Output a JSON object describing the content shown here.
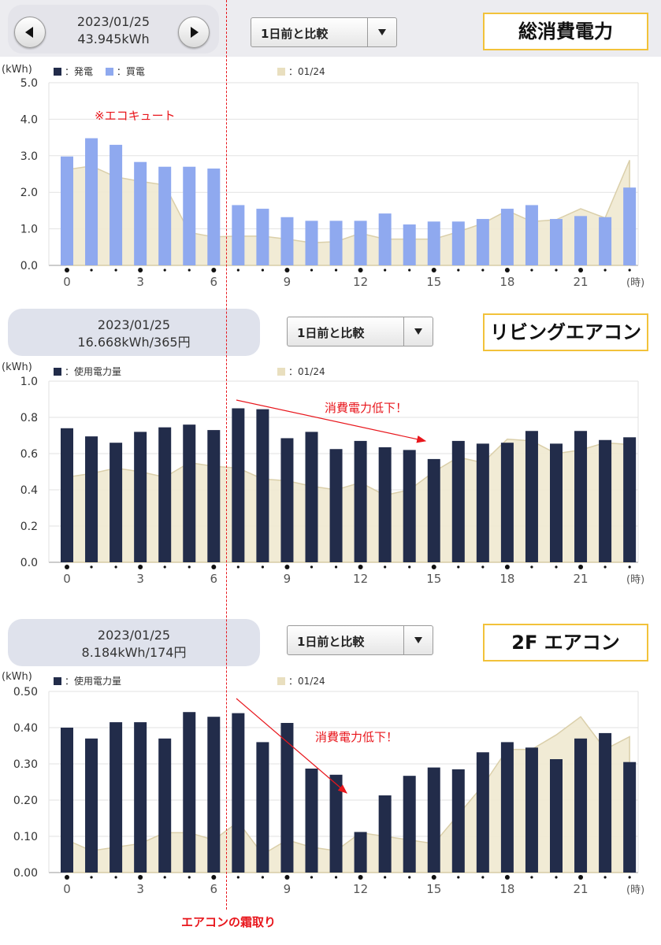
{
  "footer_note": "エアコンの霜取り",
  "colors": {
    "generation": "#222c4a",
    "purchase": "#8fa9ef",
    "prev": "#e9dfbf",
    "annotation": "#e8161c",
    "title_border": "#f2c23a"
  },
  "panels": [
    {
      "title": "総消費電力",
      "date": "2023/01/25",
      "total": "43.945kWh",
      "compare_label": "1日前と比較",
      "prev_btn_icon": "triangle-left-icon",
      "next_btn_icon": "triangle-right-icon",
      "legend_items": [
        "：発電",
        "：買電"
      ],
      "legend_prev": "：01/24",
      "chart_data": {
        "type": "bar",
        "x": [
          0,
          1,
          2,
          3,
          4,
          5,
          6,
          7,
          8,
          9,
          10,
          11,
          12,
          13,
          14,
          15,
          16,
          17,
          18,
          19,
          20,
          21,
          22,
          23
        ],
        "series": [
          {
            "name": "買電",
            "type": "bar",
            "values": [
              2.98,
              3.48,
              3.3,
              2.83,
              2.7,
              2.7,
              2.65,
              1.65,
              1.55,
              1.32,
              1.22,
              1.22,
              1.22,
              1.42,
              1.12,
              1.2,
              1.2,
              1.27,
              1.55,
              1.65,
              1.27,
              1.35,
              1.32,
              2.13
            ]
          },
          {
            "name": "01/24",
            "type": "area",
            "values": [
              2.62,
              2.72,
              2.42,
              2.3,
              2.2,
              0.9,
              0.78,
              0.8,
              0.8,
              0.72,
              0.62,
              0.65,
              0.88,
              0.72,
              0.72,
              0.72,
              0.92,
              1.15,
              1.5,
              1.2,
              1.25,
              1.55,
              1.3,
              2.88
            ]
          }
        ],
        "ylabel": "(kWh)",
        "xlabel": "(時)",
        "ylim": [
          0,
          5
        ],
        "yticks": [
          "0.0",
          "1.0",
          "2.0",
          "3.0",
          "4.0",
          "5.0"
        ],
        "xtick_labels": [
          "0",
          "3",
          "6",
          "9",
          "12",
          "15",
          "18",
          "21"
        ],
        "annotation": "※エコキュート"
      }
    },
    {
      "title": "リビングエアコン",
      "date": "2023/01/25",
      "total": "16.668kWh/365円",
      "compare_label": "1日前と比較",
      "legend_items": [
        "：使用電力量"
      ],
      "legend_prev": "：01/24",
      "chart_data": {
        "type": "bar",
        "x": [
          0,
          1,
          2,
          3,
          4,
          5,
          6,
          7,
          8,
          9,
          10,
          11,
          12,
          13,
          14,
          15,
          16,
          17,
          18,
          19,
          20,
          21,
          22,
          23
        ],
        "series": [
          {
            "name": "使用電力量",
            "type": "bar",
            "values": [
              0.74,
              0.695,
              0.66,
              0.72,
              0.745,
              0.76,
              0.73,
              0.85,
              0.845,
              0.685,
              0.72,
              0.625,
              0.67,
              0.635,
              0.62,
              0.57,
              0.67,
              0.655,
              0.66,
              0.725,
              0.655,
              0.725,
              0.675,
              0.69
            ]
          },
          {
            "name": "01/24",
            "type": "area",
            "values": [
              0.47,
              0.49,
              0.52,
              0.5,
              0.47,
              0.55,
              0.53,
              0.52,
              0.46,
              0.45,
              0.42,
              0.4,
              0.44,
              0.37,
              0.4,
              0.5,
              0.58,
              0.55,
              0.68,
              0.67,
              0.6,
              0.62,
              0.66,
              0.65
            ]
          }
        ],
        "ylabel": "(kWh)",
        "xlabel": "(時)",
        "ylim": [
          0,
          1
        ],
        "yticks": [
          "0.0",
          "0.2",
          "0.4",
          "0.6",
          "0.8",
          "1.0"
        ],
        "xtick_labels": [
          "0",
          "3",
          "6",
          "9",
          "12",
          "15",
          "18",
          "21"
        ],
        "annotation": "消費電力低下！"
      }
    },
    {
      "title": "2F エアコン",
      "date": "2023/01/25",
      "total": "8.184kWh/174円",
      "compare_label": "1日前と比較",
      "legend_items": [
        "：使用電力量"
      ],
      "legend_prev": "：01/24",
      "chart_data": {
        "type": "bar",
        "x": [
          0,
          1,
          2,
          3,
          4,
          5,
          6,
          7,
          8,
          9,
          10,
          11,
          12,
          13,
          14,
          15,
          16,
          17,
          18,
          19,
          20,
          21,
          22,
          23
        ],
        "series": [
          {
            "name": "使用電力量",
            "type": "bar",
            "values": [
              0.4,
              0.37,
              0.415,
              0.415,
              0.37,
              0.443,
              0.43,
              0.44,
              0.36,
              0.413,
              0.287,
              0.27,
              0.112,
              0.213,
              0.267,
              0.29,
              0.285,
              0.332,
              0.36,
              0.345,
              0.313,
              0.37,
              0.385,
              0.305
            ]
          },
          {
            "name": "01/24",
            "type": "area",
            "values": [
              0.09,
              0.06,
              0.07,
              0.08,
              0.11,
              0.11,
              0.09,
              0.14,
              0.05,
              0.09,
              0.07,
              0.06,
              0.11,
              0.1,
              0.09,
              0.08,
              0.16,
              0.24,
              0.34,
              0.34,
              0.38,
              0.43,
              0.34,
              0.375
            ]
          }
        ],
        "ylabel": "(kWh)",
        "xlabel": "(時)",
        "ylim": [
          0,
          0.5
        ],
        "yticks": [
          "0.00",
          "0.10",
          "0.20",
          "0.30",
          "0.40",
          "0.50"
        ],
        "xtick_labels": [
          "0",
          "3",
          "6",
          "9",
          "12",
          "15",
          "18",
          "21"
        ],
        "annotation": "消費電力低下！"
      }
    }
  ]
}
